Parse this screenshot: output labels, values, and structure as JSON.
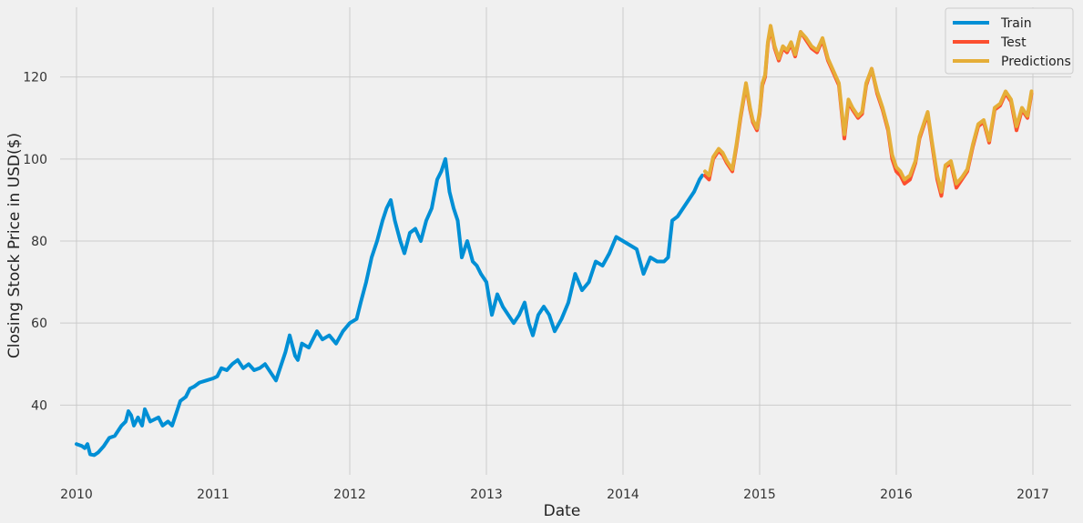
{
  "chart_data": {
    "type": "line",
    "title": "",
    "xlabel": "Date",
    "ylabel": "Closing Stock Price in USD($)",
    "xlim": [
      2009.88,
      2017.28
    ],
    "ylim": [
      23,
      137
    ],
    "x_ticks": [
      2010,
      2011,
      2012,
      2013,
      2014,
      2015,
      2016,
      2017
    ],
    "x_tick_labels": [
      "2010",
      "2011",
      "2012",
      "2013",
      "2014",
      "2015",
      "2016",
      "2017"
    ],
    "y_ticks": [
      40,
      60,
      80,
      100,
      120
    ],
    "y_tick_labels": [
      "40",
      "60",
      "80",
      "100",
      "120"
    ],
    "grid": true,
    "legend_position": "top-right",
    "series": [
      {
        "name": "Train",
        "color": "#008fd5",
        "x": [
          2010.0,
          2010.04,
          2010.06,
          2010.08,
          2010.1,
          2010.13,
          2010.16,
          2010.2,
          2010.24,
          2010.28,
          2010.31,
          2010.33,
          2010.36,
          2010.38,
          2010.4,
          2010.42,
          2010.45,
          2010.48,
          2010.5,
          2010.54,
          2010.57,
          2010.6,
          2010.63,
          2010.67,
          2010.7,
          2010.73,
          2010.76,
          2010.8,
          2010.83,
          2010.86,
          2010.9,
          2010.95,
          2011.0,
          2011.03,
          2011.06,
          2011.1,
          2011.14,
          2011.18,
          2011.22,
          2011.26,
          2011.3,
          2011.34,
          2011.38,
          2011.42,
          2011.46,
          2011.5,
          2011.53,
          2011.56,
          2011.6,
          2011.62,
          2011.65,
          2011.7,
          2011.73,
          2011.76,
          2011.8,
          2011.85,
          2011.9,
          2011.95,
          2012.0,
          2012.05,
          2012.08,
          2012.12,
          2012.16,
          2012.2,
          2012.24,
          2012.27,
          2012.3,
          2012.33,
          2012.37,
          2012.4,
          2012.44,
          2012.48,
          2012.52,
          2012.56,
          2012.6,
          2012.64,
          2012.67,
          2012.7,
          2012.73,
          2012.76,
          2012.79,
          2012.82,
          2012.86,
          2012.9,
          2012.93,
          2012.96,
          2013.0,
          2013.04,
          2013.08,
          2013.12,
          2013.16,
          2013.2,
          2013.24,
          2013.28,
          2013.31,
          2013.34,
          2013.38,
          2013.42,
          2013.46,
          2013.5,
          2013.55,
          2013.6,
          2013.65,
          2013.7,
          2013.75,
          2013.8,
          2013.85,
          2013.9,
          2013.95,
          2014.0,
          2014.05,
          2014.1,
          2014.15,
          2014.2,
          2014.25,
          2014.3,
          2014.33,
          2014.36,
          2014.4,
          2014.44,
          2014.48,
          2014.52,
          2014.56,
          2014.58
        ],
        "y": [
          30.5,
          30.0,
          29.5,
          30.5,
          28.0,
          27.8,
          28.5,
          30.0,
          32.0,
          32.5,
          34.0,
          35.0,
          36.0,
          38.5,
          37.5,
          35.0,
          37.0,
          35.0,
          39.0,
          36.0,
          36.5,
          37.0,
          35.0,
          36.0,
          35.0,
          38.0,
          41.0,
          42.0,
          44.0,
          44.5,
          45.5,
          46.0,
          46.5,
          47.0,
          49.0,
          48.5,
          50.0,
          51.0,
          49.0,
          50.0,
          48.5,
          49.0,
          50.0,
          48.0,
          46.0,
          50.0,
          53.0,
          57.0,
          52.0,
          51.0,
          55.0,
          54.0,
          56.0,
          58.0,
          56.0,
          57.0,
          55.0,
          58.0,
          60.0,
          61.0,
          65.0,
          70.0,
          76.0,
          80.0,
          85.0,
          88.0,
          90.0,
          85.0,
          80.0,
          77.0,
          82.0,
          83.0,
          80.0,
          85.0,
          88.0,
          95.0,
          97.0,
          100.0,
          92.0,
          88.0,
          85.0,
          76.0,
          80.0,
          75.0,
          74.0,
          72.0,
          70.0,
          62.0,
          67.0,
          64.0,
          62.0,
          60.0,
          62.0,
          65.0,
          60.0,
          57.0,
          62.0,
          64.0,
          62.0,
          58.0,
          61.0,
          65.0,
          72.0,
          68.0,
          70.0,
          75.0,
          74.0,
          77.0,
          81.0,
          80.0,
          79.0,
          78.0,
          72.0,
          76.0,
          75.0,
          75.0,
          76.0,
          85.0,
          86.0,
          88.0,
          90.0,
          92.0,
          95.0,
          96.0
        ]
      },
      {
        "name": "Test",
        "color": "#fc4f30",
        "x": [
          2014.6,
          2014.63,
          2014.66,
          2014.7,
          2014.73,
          2014.76,
          2014.8,
          2014.83,
          2014.86,
          2014.9,
          2014.93,
          2014.95,
          2014.98,
          2015.0,
          2015.02,
          2015.04,
          2015.06,
          2015.08,
          2015.11,
          2015.14,
          2015.17,
          2015.2,
          2015.23,
          2015.26,
          2015.3,
          2015.34,
          2015.38,
          2015.42,
          2015.46,
          2015.5,
          2015.54,
          2015.58,
          2015.62,
          2015.65,
          2015.68,
          2015.72,
          2015.75,
          2015.78,
          2015.82,
          2015.86,
          2015.9,
          2015.94,
          2015.97,
          2016.0,
          2016.03,
          2016.06,
          2016.1,
          2016.14,
          2016.17,
          2016.2,
          2016.23,
          2016.26,
          2016.3,
          2016.33,
          2016.36,
          2016.4,
          2016.44,
          2016.48,
          2016.52,
          2016.56,
          2016.6,
          2016.64,
          2016.68,
          2016.72,
          2016.76,
          2016.8,
          2016.84,
          2016.88,
          2016.92,
          2016.96,
          2016.99
        ],
        "y": [
          96.0,
          95.0,
          100.0,
          102.0,
          101.0,
          99.0,
          97.0,
          103.0,
          110.0,
          118.0,
          112.0,
          109.0,
          107.0,
          111.0,
          118.0,
          120.0,
          128.0,
          132.0,
          127.0,
          124.0,
          127.0,
          126.0,
          128.0,
          125.0,
          131.0,
          129.0,
          127.0,
          126.0,
          129.0,
          124.0,
          121.0,
          118.0,
          105.0,
          114.0,
          112.0,
          110.0,
          111.0,
          118.0,
          122.0,
          116.0,
          112.0,
          107.0,
          100.0,
          97.0,
          96.0,
          94.0,
          95.0,
          99.0,
          105.0,
          108.0,
          111.0,
          104.0,
          95.0,
          91.0,
          98.0,
          99.0,
          93.0,
          95.0,
          97.0,
          103.0,
          108.0,
          109.0,
          104.0,
          112.0,
          113.0,
          116.0,
          114.0,
          107.0,
          112.0,
          110.0,
          116.0
        ]
      },
      {
        "name": "Predictions",
        "color": "#e5ae38",
        "x": [
          2014.6,
          2014.63,
          2014.66,
          2014.7,
          2014.73,
          2014.76,
          2014.8,
          2014.83,
          2014.86,
          2014.9,
          2014.93,
          2014.95,
          2014.98,
          2015.0,
          2015.02,
          2015.04,
          2015.06,
          2015.08,
          2015.11,
          2015.14,
          2015.17,
          2015.2,
          2015.23,
          2015.26,
          2015.3,
          2015.34,
          2015.38,
          2015.42,
          2015.46,
          2015.5,
          2015.54,
          2015.58,
          2015.62,
          2015.65,
          2015.68,
          2015.72,
          2015.75,
          2015.78,
          2015.82,
          2015.86,
          2015.9,
          2015.94,
          2015.97,
          2016.0,
          2016.03,
          2016.06,
          2016.1,
          2016.14,
          2016.17,
          2016.2,
          2016.23,
          2016.26,
          2016.3,
          2016.33,
          2016.36,
          2016.4,
          2016.44,
          2016.48,
          2016.52,
          2016.56,
          2016.6,
          2016.64,
          2016.68,
          2016.72,
          2016.76,
          2016.8,
          2016.84,
          2016.88,
          2016.92,
          2016.96,
          2016.99
        ],
        "y": [
          97.0,
          96.0,
          100.5,
          102.5,
          101.5,
          99.5,
          97.5,
          103.5,
          110.5,
          118.5,
          112.5,
          109.5,
          107.5,
          111.5,
          118.5,
          120.5,
          128.5,
          132.5,
          127.5,
          124.5,
          127.5,
          126.5,
          128.5,
          125.5,
          131.0,
          129.5,
          127.5,
          126.5,
          129.5,
          124.5,
          121.5,
          118.5,
          106.0,
          114.5,
          112.5,
          110.5,
          111.5,
          118.5,
          122.0,
          116.5,
          112.5,
          107.5,
          101.0,
          98.0,
          97.0,
          95.0,
          96.0,
          99.5,
          105.5,
          108.5,
          111.5,
          104.5,
          96.0,
          92.0,
          98.5,
          99.5,
          94.0,
          95.5,
          97.5,
          103.5,
          108.5,
          109.5,
          104.5,
          112.5,
          113.5,
          116.5,
          114.5,
          108.0,
          112.5,
          110.5,
          116.5
        ]
      }
    ]
  }
}
